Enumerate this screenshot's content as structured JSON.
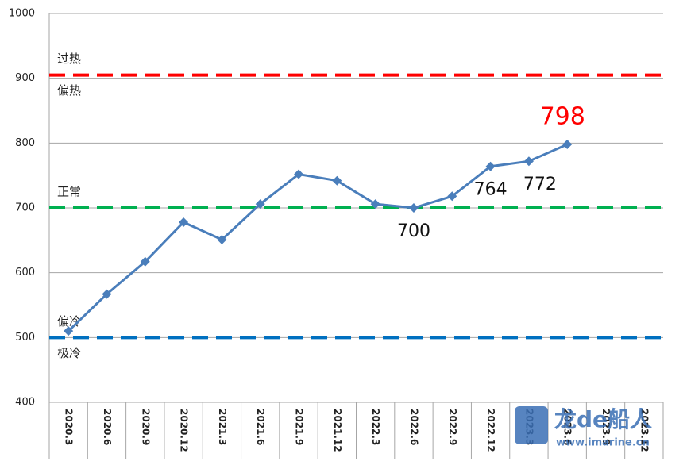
{
  "chart_data": {
    "type": "line",
    "categories": [
      "2020.3",
      "2020.6",
      "2020.9",
      "2020.12",
      "2021.3",
      "2021.6",
      "2021.9",
      "2021.12",
      "2022.3",
      "2022.6",
      "2022.9",
      "2022.12",
      "2023.3",
      "2023.6",
      "2023.9",
      "2023.12"
    ],
    "values": [
      510,
      567,
      617,
      678,
      651,
      706,
      752,
      742,
      706,
      700,
      718,
      764,
      772,
      798,
      null,
      null
    ],
    "value_labels": [
      null,
      null,
      null,
      null,
      null,
      null,
      null,
      null,
      null,
      "700",
      null,
      "764",
      "772",
      "798",
      null,
      null
    ],
    "color": "#4a7ebb",
    "highlight_color": "#ff0000",
    "ylim": [
      400,
      1000
    ],
    "yticks": [
      400,
      500,
      600,
      700,
      800,
      900,
      1000
    ],
    "grid": true,
    "reference_lines": [
      {
        "value": 905,
        "color": "#ff0000",
        "label_above": "过热",
        "label_below": "偏热"
      },
      {
        "value": 700,
        "color": "#00b050",
        "label_above": "正常"
      },
      {
        "value": 500,
        "color": "#0070c0",
        "label_above": "偏冷",
        "label_below": "极冷"
      }
    ]
  },
  "watermark": {
    "brand": "龙de船人",
    "url": "www.imarine.cn"
  }
}
